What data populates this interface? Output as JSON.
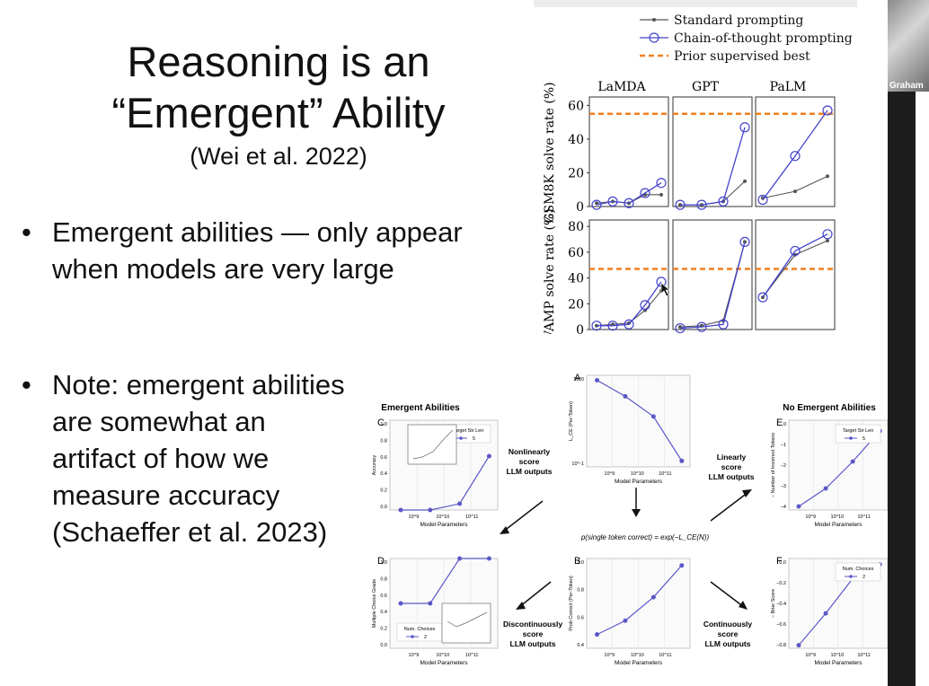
{
  "slide": {
    "title_line1": "Reasoning is an",
    "title_line2": "“Emergent” Ability",
    "citation": "(Wei et al. 2022)",
    "bullet_marker": "•",
    "bullet1": "Emergent abilities — only appear when models are very large",
    "bullet2": "Note: emergent abilities are somewhat an artifact of how we measure accuracy (Schaeffer et al. 2023)"
  },
  "participant": {
    "name": "Graham"
  },
  "colors": {
    "cot": "#4444cc",
    "standard": "#555555",
    "prior": "#f07f20",
    "panel": "#5b57c7"
  },
  "chart_data": [
    {
      "type": "line",
      "legend": [
        "Standard prompting",
        "Chain-of-thought prompting",
        "Prior supervised best"
      ],
      "columns": [
        "LaMDA",
        "GPT",
        "PaLM"
      ],
      "rows": [
        {
          "ylabel": "GSM8K solve rate (%)",
          "yticks": [
            "60",
            "40",
            "20",
            "0"
          ],
          "ylim": [
            0,
            65
          ],
          "prior_best": 55,
          "panels": [
            {
              "standard": [
                2,
                3,
                2,
                7,
                7
              ],
              "cot": [
                1,
                3,
                2,
                8,
                14
              ]
            },
            {
              "standard": [
                1,
                1,
                3,
                15
              ],
              "cot": [
                1,
                1,
                3,
                47
              ]
            },
            {
              "standard": [
                5,
                9,
                18
              ],
              "cot": [
                4,
                30,
                57
              ]
            }
          ]
        },
        {
          "ylabel": "SVAMP solve rate (%)",
          "yticks": [
            "80",
            "60",
            "40",
            "20",
            "0"
          ],
          "ylim": [
            0,
            85
          ],
          "prior_best": 47,
          "panels": [
            {
              "standard": [
                3,
                4,
                5,
                15,
                30
              ],
              "cot": [
                3,
                3,
                4,
                19,
                37
              ]
            },
            {
              "standard": [
                2,
                3,
                7,
                68
              ],
              "cot": [
                1,
                2,
                4,
                68
              ]
            },
            {
              "standard": [
                25,
                58,
                69
              ],
              "cot": [
                25,
                61,
                74
              ]
            }
          ]
        }
      ]
    },
    {
      "type": "line",
      "title": "Emergent Abilities",
      "letter": "C",
      "ylabel": "Accuracy",
      "xlabel": "Model Parameters",
      "legend_title": "Target Str Len",
      "legend_value": "5",
      "yticks": [
        "1.0",
        "0.8",
        "0.6",
        "0.4",
        "0.2",
        "0.0"
      ],
      "xticks": [
        "10^9",
        "10^10",
        "10^11"
      ],
      "values": [
        0.0,
        0.0,
        0.07,
        0.6
      ]
    },
    {
      "type": "line",
      "letter": "D",
      "ylabel": "Multiple Choice Grade",
      "xlabel": "Model Parameters",
      "legend_title": "Num. Choices",
      "legend_value": "2",
      "yticks": [
        "1.0",
        "0.8",
        "0.6",
        "0.4",
        "0.2",
        "0.0"
      ],
      "xticks": [
        "10^9",
        "10^10",
        "10^11"
      ],
      "values": [
        0.5,
        0.5,
        1.0,
        1.0
      ]
    },
    {
      "type": "line",
      "letter": "A",
      "ylabel": "L_CE (Per-Token)",
      "xlabel": "Model Parameters",
      "yticks": [
        "10^0",
        "10^-1"
      ],
      "xticks": [
        "10^9",
        "10^10",
        "10^11"
      ],
      "values": [
        2.0,
        1.1,
        0.52,
        0.1
      ]
    },
    {
      "type": "line",
      "letter": "B",
      "formula": "p(single token correct) = exp(−L_CE(N))",
      "ylabel": "Prob Correct (Per-Token)",
      "xlabel": "Model Parameters",
      "yticks": [
        "1.0",
        "0.8",
        "0.6",
        "0.4"
      ],
      "xticks": [
        "10^9",
        "10^10",
        "10^11"
      ],
      "values": [
        0.45,
        0.55,
        0.72,
        0.95
      ]
    },
    {
      "type": "line",
      "title": "No Emergent Abilities",
      "letter": "E",
      "ylabel": "− Number of Incorrect Tokens",
      "xlabel": "Model Parameters",
      "legend_title": "Target Str Len",
      "legend_value": "5",
      "yticks": [
        "0",
        "−1",
        "−2",
        "−3",
        "−4"
      ],
      "xticks": [
        "10^9",
        "10^10",
        "10^11"
      ],
      "values": [
        -4.6,
        -3.6,
        -2.1,
        -0.4
      ]
    },
    {
      "type": "line",
      "letter": "F",
      "ylabel": "− Brier Score",
      "xlabel": "Model Parameters",
      "legend_title": "Num. Choices",
      "legend_value": "2",
      "yticks": [
        "0.0",
        "−0.2",
        "−0.4",
        "−0.6",
        "−0.8"
      ],
      "xticks": [
        "10^9",
        "10^10",
        "10^11"
      ],
      "values": [
        -0.82,
        -0.5,
        -0.15,
        -0.01
      ]
    }
  ],
  "arrows": {
    "upper_left": "Nonlinearly score LLM outputs",
    "upper_right": "Linearly score LLM outputs",
    "lower_left": "Discontinuously score LLM outputs",
    "lower_right": "Continuously score LLM outputs"
  }
}
